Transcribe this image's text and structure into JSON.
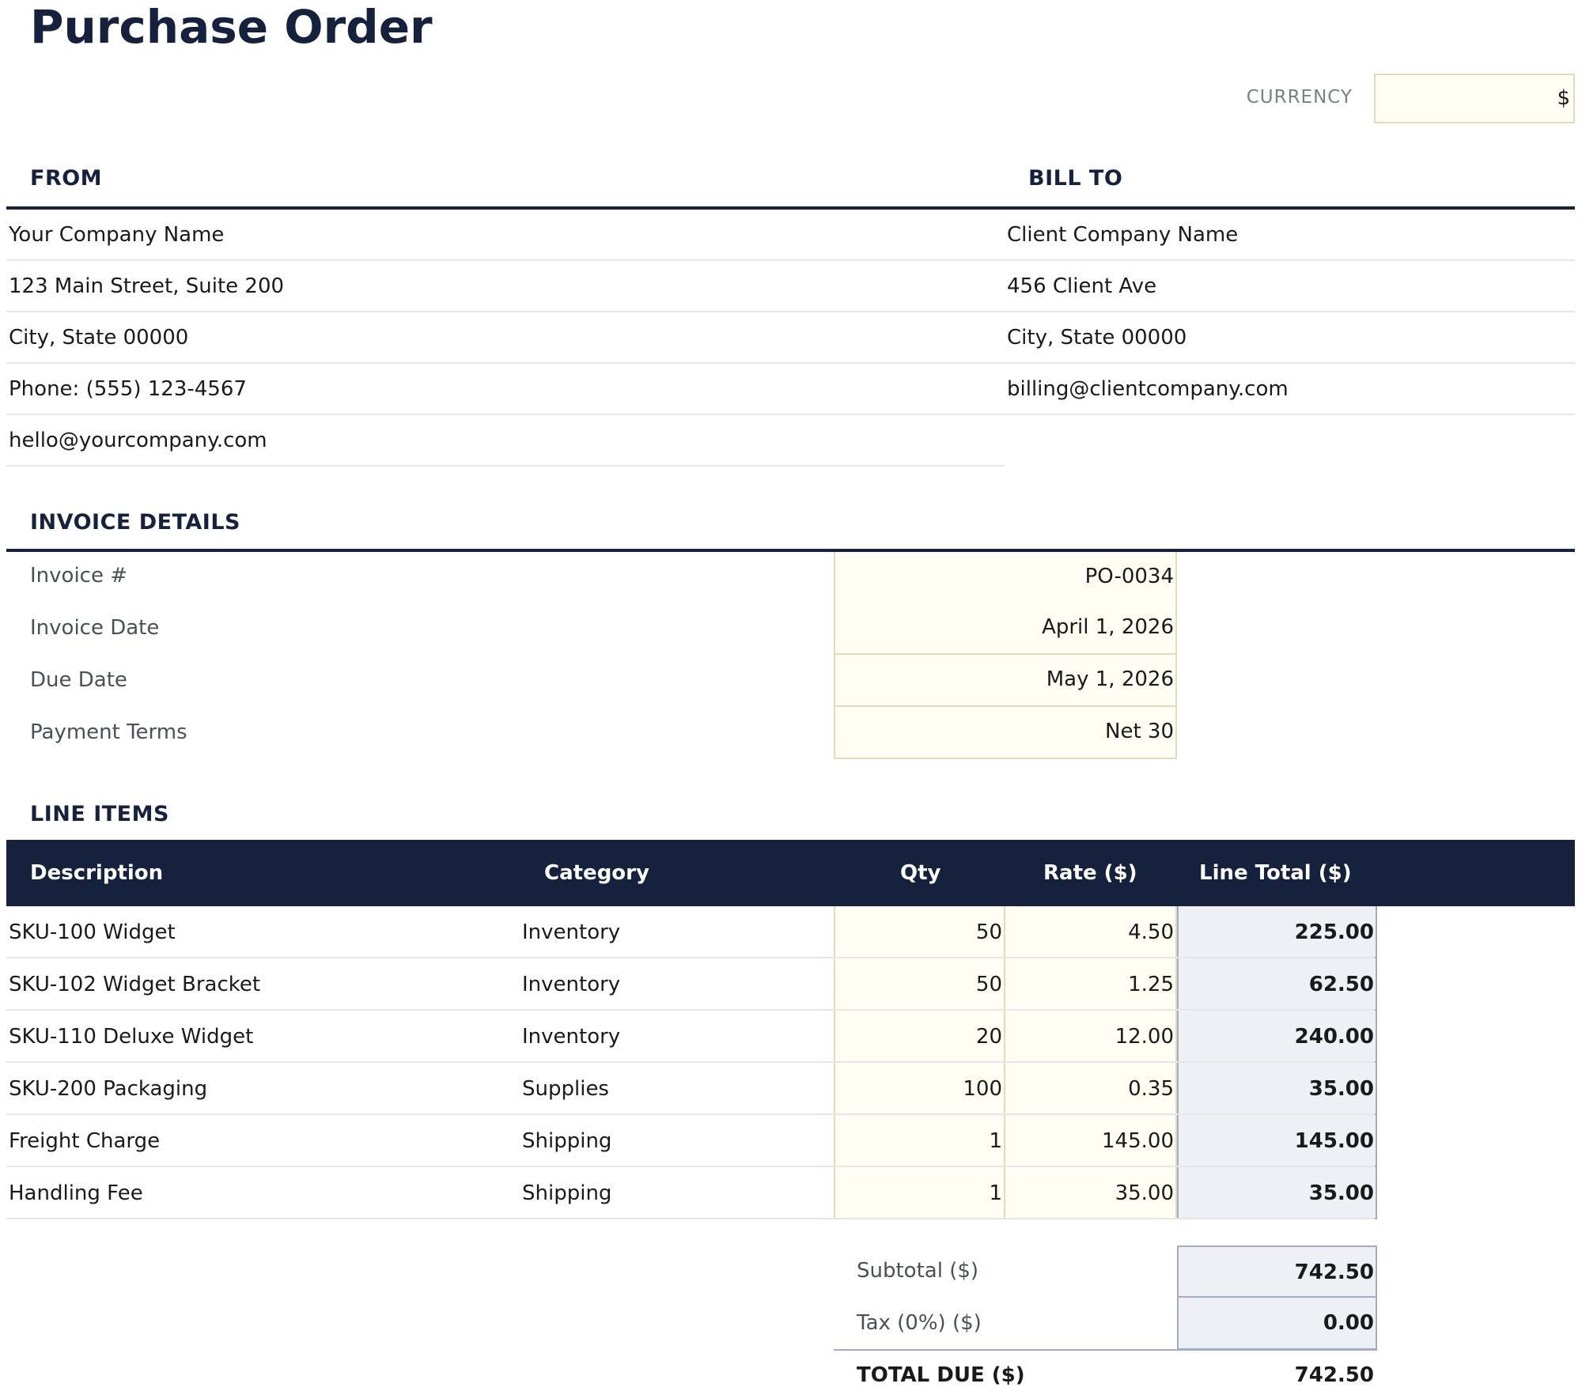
{
  "title": "Purchase Order",
  "currency": {
    "label": "CURRENCY",
    "value": "$"
  },
  "from": {
    "heading": "FROM",
    "lines": [
      "Your Company Name",
      "123 Main Street, Suite 200",
      "City, State 00000",
      "Phone: (555) 123-4567",
      "hello@yourcompany.com"
    ]
  },
  "bill_to": {
    "heading": "BILL TO",
    "lines": [
      "Client Company Name",
      "456 Client Ave",
      "City, State 00000",
      "billing@clientcompany.com"
    ]
  },
  "invoice_details": {
    "heading": "INVOICE DETAILS",
    "rows": [
      {
        "label": "Invoice #",
        "value": "PO-0034"
      },
      {
        "label": "Invoice Date",
        "value": "April 1, 2026"
      },
      {
        "label": "Due Date",
        "value": "May 1, 2026"
      },
      {
        "label": "Payment Terms",
        "value": "Net 30"
      }
    ]
  },
  "line_items": {
    "heading": "LINE ITEMS",
    "columns": [
      "Description",
      "Category",
      "Qty",
      "Rate ($)",
      "Line Total ($)"
    ],
    "rows": [
      {
        "description": "SKU-100 Widget",
        "category": "Inventory",
        "qty": "50",
        "rate": "4.50",
        "total": "225.00"
      },
      {
        "description": "SKU-102 Widget Bracket",
        "category": "Inventory",
        "qty": "50",
        "rate": "1.25",
        "total": "62.50"
      },
      {
        "description": "SKU-110 Deluxe Widget",
        "category": "Inventory",
        "qty": "20",
        "rate": "12.00",
        "total": "240.00"
      },
      {
        "description": "SKU-200 Packaging",
        "category": "Supplies",
        "qty": "100",
        "rate": "0.35",
        "total": "35.00"
      },
      {
        "description": "Freight Charge",
        "category": "Shipping",
        "qty": "1",
        "rate": "145.00",
        "total": "145.00"
      },
      {
        "description": "Handling Fee",
        "category": "Shipping",
        "qty": "1",
        "rate": "35.00",
        "total": "35.00"
      }
    ]
  },
  "summary": {
    "subtotal_label": "Subtotal ($)",
    "subtotal": "742.50",
    "tax_label": "Tax (0%) ($)",
    "tax": "0.00",
    "total_label": "TOTAL DUE ($)",
    "total": "742.50"
  }
}
